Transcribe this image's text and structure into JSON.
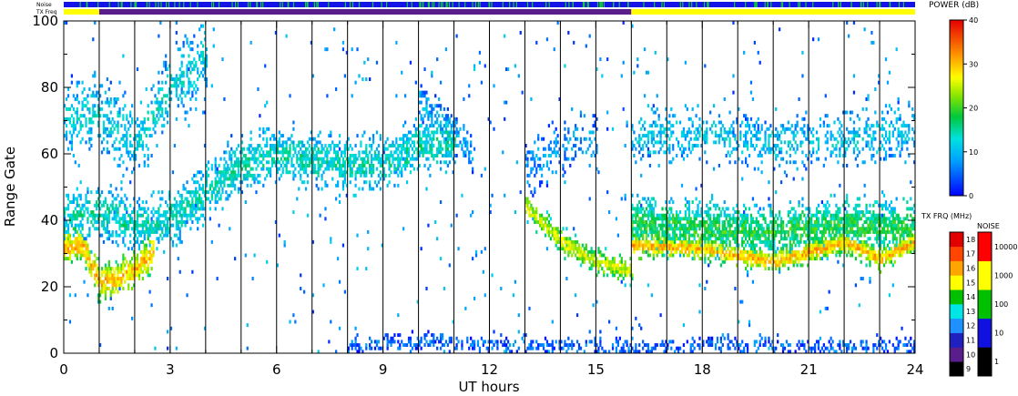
{
  "chart_data": {
    "type": "heatmap",
    "xlabel": "UT hours",
    "ylabel": "Range Gate",
    "xlim": [
      0,
      24
    ],
    "ylim": [
      0,
      100
    ],
    "x_ticks": [
      "0",
      "3",
      "6",
      "9",
      "12",
      "15",
      "18",
      "21",
      "24"
    ],
    "y_ticks": [
      "0",
      "20",
      "40",
      "60",
      "80",
      "100"
    ],
    "vertical_marker_hours": [
      1,
      2,
      3,
      4,
      5,
      6,
      7,
      8,
      9,
      10,
      11,
      12,
      13,
      14,
      15,
      16,
      17,
      18,
      19,
      20,
      21,
      22,
      23
    ],
    "top_bars": {
      "noise_label": "Noise",
      "txfreq_label": "TX Freq",
      "txfreq_segments": [
        {
          "from": 0,
          "to": 1,
          "color": "#ffff00"
        },
        {
          "from": 1,
          "to": 16,
          "color": "#5a1e8c"
        },
        {
          "from": 16,
          "to": 24,
          "color": "#ffff00"
        }
      ]
    },
    "power_bar": {
      "title": "POWER (dB)",
      "ticks": [
        "0",
        "10",
        "20",
        "30",
        "40"
      ],
      "range": [
        0,
        40
      ]
    },
    "txfreq_bar": {
      "title": "TX FRQ (MHz)",
      "ticks": [
        "9",
        "10",
        "11",
        "12",
        "13",
        "14",
        "15",
        "16",
        "17",
        "18"
      ],
      "colors": [
        "#000000",
        "#5a1e8c",
        "#2020c0",
        "#1e90ff",
        "#00e5e5",
        "#00c000",
        "#ffff00",
        "#ffa500",
        "#ff4500",
        "#e00000"
      ]
    },
    "noise_bar": {
      "title": "NOISE",
      "ticks": [
        "1",
        "10",
        "100",
        "1000",
        "10000"
      ],
      "colors": [
        "#000000",
        "#1010e0",
        "#00c000",
        "#ffff00",
        "#ff0000"
      ]
    },
    "echo_bands": [
      {
        "name": "",
        "points": [
          [
            0,
            31
          ],
          [
            0.5,
            32
          ],
          [
            1,
            21
          ],
          [
            1.5,
            22
          ],
          [
            2,
            25
          ],
          [
            2.5,
            30
          ]
        ],
        "halfwidth": 4,
        "density": 0.9,
        "power": 30
      },
      {
        "name": "",
        "points": [
          [
            0,
            40
          ],
          [
            1,
            42
          ],
          [
            2,
            38
          ],
          [
            3,
            40
          ],
          [
            4,
            48
          ],
          [
            5,
            56
          ],
          [
            6,
            59
          ],
          [
            7,
            58
          ],
          [
            8,
            56
          ],
          [
            9,
            57
          ],
          [
            10,
            62
          ],
          [
            11,
            63
          ]
        ],
        "halfwidth": 6,
        "density": 0.65,
        "power": 14
      },
      {
        "name": "",
        "points": [
          [
            0,
            70
          ],
          [
            1,
            72
          ],
          [
            2,
            62
          ],
          [
            3,
            80
          ],
          [
            4,
            88
          ]
        ],
        "halfwidth": 8,
        "density": 0.45,
        "power": 12
      },
      {
        "name": "",
        "points": [
          [
            10,
            76
          ],
          [
            11,
            66
          ],
          [
            11.5,
            60
          ]
        ],
        "halfwidth": 4,
        "density": 0.55,
        "power": 9
      },
      {
        "name": "",
        "points": [
          [
            13,
            44
          ],
          [
            14,
            33
          ],
          [
            15,
            27
          ],
          [
            16,
            24
          ]
        ],
        "halfwidth": 3,
        "density": 0.85,
        "power": 25
      },
      {
        "name": "",
        "points": [
          [
            13,
            55
          ],
          [
            14,
            62
          ],
          [
            15,
            64
          ]
        ],
        "halfwidth": 6,
        "density": 0.35,
        "power": 8
      },
      {
        "name": "",
        "points": [
          [
            16,
            32
          ],
          [
            18,
            31
          ],
          [
            20,
            27
          ],
          [
            22,
            33
          ],
          [
            23,
            28
          ],
          [
            24,
            33
          ]
        ],
        "halfwidth": 2.5,
        "density": 0.95,
        "power": 30
      },
      {
        "name": "",
        "points": [
          [
            16,
            39
          ],
          [
            18,
            37
          ],
          [
            20,
            36
          ],
          [
            22,
            38
          ],
          [
            24,
            37
          ]
        ],
        "halfwidth": 6,
        "density": 0.8,
        "power": 18
      },
      {
        "name": "",
        "points": [
          [
            16,
            64
          ],
          [
            18,
            66
          ],
          [
            20,
            62
          ],
          [
            22,
            64
          ],
          [
            24,
            66
          ]
        ],
        "halfwidth": 6,
        "density": 0.4,
        "power": 11
      },
      {
        "name": "",
        "points": [
          [
            8,
            2
          ],
          [
            10,
            3
          ],
          [
            12,
            2
          ],
          [
            14,
            2
          ],
          [
            16,
            1
          ],
          [
            18,
            2
          ],
          [
            20,
            2
          ],
          [
            22,
            1
          ],
          [
            24,
            2
          ]
        ],
        "halfwidth": 2,
        "density": 0.45,
        "power": 5
      }
    ]
  }
}
